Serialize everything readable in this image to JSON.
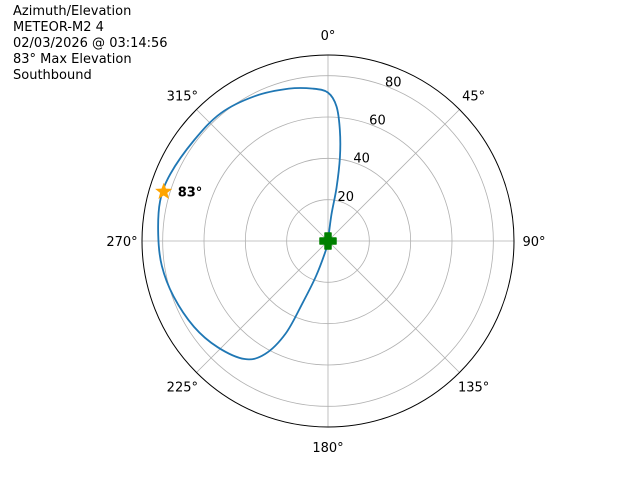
{
  "chart_data": {
    "type": "polar-line",
    "title_lines": [
      "Azimuth/Elevation",
      "METEOR-M2 4",
      "02/03/2026 @ 03:14:56",
      "83° Max Elevation",
      "Southbound"
    ],
    "theta_direction": "clockwise",
    "theta_zero": "north",
    "theta_ticks": [
      0,
      45,
      90,
      135,
      180,
      225,
      270,
      315
    ],
    "theta_tick_labels": [
      "0°",
      "45°",
      "90°",
      "135°",
      "180°",
      "225°",
      "270°",
      "315°"
    ],
    "r_ticks": [
      20,
      40,
      60,
      80
    ],
    "r_tick_labels": [
      "20",
      "40",
      "60",
      "80"
    ],
    "rlim": [
      0,
      90
    ],
    "grid": true,
    "series": [
      {
        "color": "#1f77b4",
        "azimuth": [
          0,
          7.4,
          9.1,
          8.1,
          6.1,
          3.6,
          0,
          354.3,
          345.6,
          333.3,
          320.1,
          306.9,
          293,
          283.3,
          272,
          261.5,
          250.3,
          237.4,
          226.1,
          215.2,
          209.1,
          204.6,
          202.3,
          198.8,
          192,
          180
        ],
        "r": [
          0,
          12.8,
          26.1,
          41,
          54,
          65.3,
          71.8,
          74.1,
          76.1,
          78.5,
          80.7,
          81.1,
          82.9,
          83.5,
          82.2,
          81.3,
          79.4,
          77,
          74.1,
          69.9,
          62.6,
          49.3,
          32.5,
          17.8,
          3.9,
          0
        ]
      }
    ],
    "markers": [
      {
        "kind": "max-elevation-star",
        "azimuth": 286.7,
        "r": 83,
        "color": "#ffa500",
        "label": "83°"
      },
      {
        "kind": "start-plus",
        "azimuth": 0,
        "r": 0,
        "color": "#008000"
      }
    ]
  }
}
